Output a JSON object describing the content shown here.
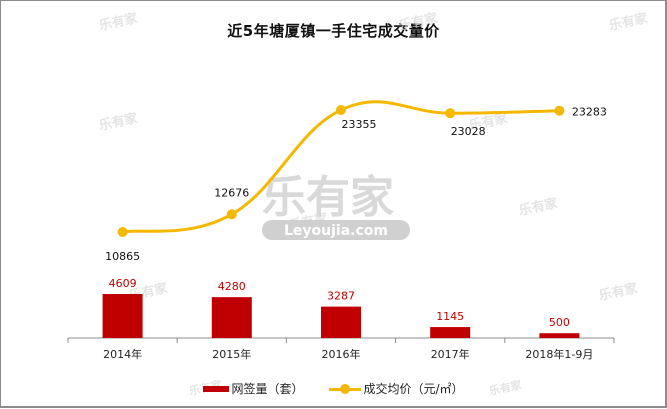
{
  "chart_data": {
    "type": "bar+line",
    "title": "近5年塘厦镇一手住宅成交量价",
    "categories": [
      "2014年",
      "2015年",
      "2016年",
      "2017年",
      "2018年1-9月"
    ],
    "series": [
      {
        "name": "网签量（套）",
        "type": "bar",
        "color": "#c00000",
        "values": [
          4609,
          4280,
          3287,
          1145,
          500
        ]
      },
      {
        "name": "成交均价（元/㎡）",
        "type": "line",
        "color": "#f5b800",
        "smooth": true,
        "values": [
          10865,
          12676,
          23355,
          23028,
          23283
        ]
      }
    ],
    "xlabel": "",
    "ylabel": "",
    "grid": false,
    "legend_position": "bottom"
  },
  "title": "近5年塘厦镇一手住宅成交量价",
  "legend": {
    "bar_label": "网签量（套）",
    "line_label": "成交均价（元/㎡）"
  },
  "watermark": {
    "brand": "乐有家",
    "site": "Leyoujia.com"
  }
}
